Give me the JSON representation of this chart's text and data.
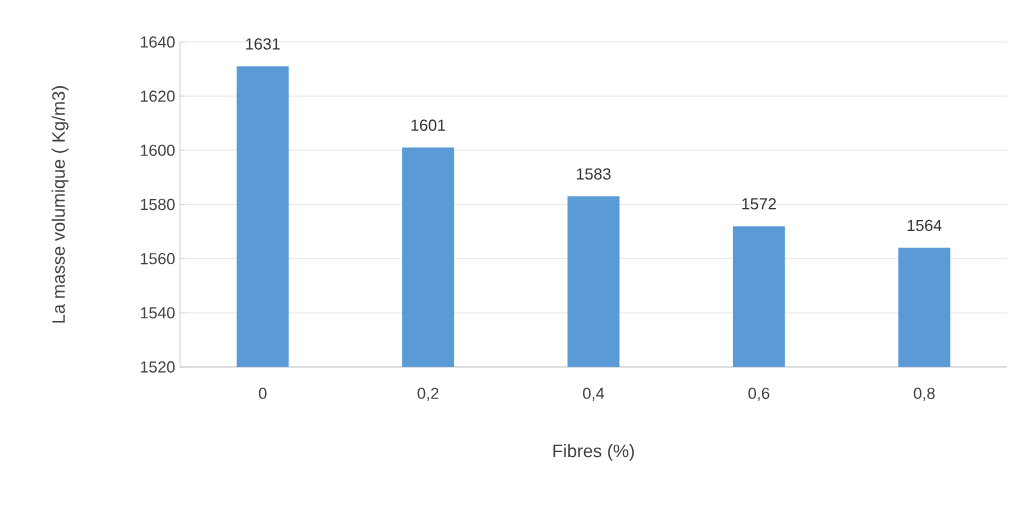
{
  "chart_data": {
    "type": "bar",
    "xlabel": "Fibres (%)",
    "ylabel": "La masse volumique ( Kg/m3)",
    "categories": [
      "0",
      "0,2",
      "0,4",
      "0,6",
      "0,8"
    ],
    "values": [
      1631,
      1601,
      1583,
      1572,
      1564
    ],
    "color": "#5b9bd5",
    "ylim": [
      1520,
      1640
    ],
    "yticks": [
      1520,
      1540,
      1560,
      1580,
      1600,
      1620,
      1640
    ],
    "grid": "y",
    "data_labels": true
  }
}
